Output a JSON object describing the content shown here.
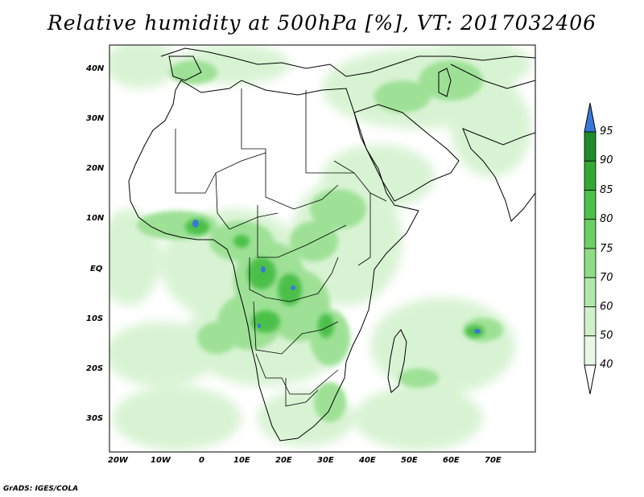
{
  "title": "Relative humidity at 500hPa [%], VT: 2017032406",
  "footer": "GrADS: IGES/COLA",
  "map": {
    "variable": "Relative humidity at 500hPa",
    "units": "%",
    "valid_time": "2017032406",
    "lon_range": [
      -23,
      80
    ],
    "lat_range": [
      -37,
      45
    ],
    "lat_labels": [
      "40N",
      "30N",
      "20N",
      "10N",
      "EQ",
      "10S",
      "20S",
      "30S"
    ],
    "lon_labels": [
      "20W",
      "10W",
      "0",
      "10E",
      "20E",
      "30E",
      "40E",
      "50E",
      "60E",
      "70E"
    ]
  },
  "colorbar": {
    "levels": [
      "40",
      "50",
      "60",
      "70",
      "75",
      "80",
      "85",
      "90",
      "95"
    ],
    "colors": [
      "#ffffff",
      "#e8f8e5",
      "#d0f0cb",
      "#b0e8a8",
      "#8edd86",
      "#6cd064",
      "#4cc04a",
      "#34a834",
      "#1e8a2a",
      "#3a78d8"
    ]
  },
  "colors": {
    "land_outline": "#000000",
    "frame": "#000000"
  }
}
